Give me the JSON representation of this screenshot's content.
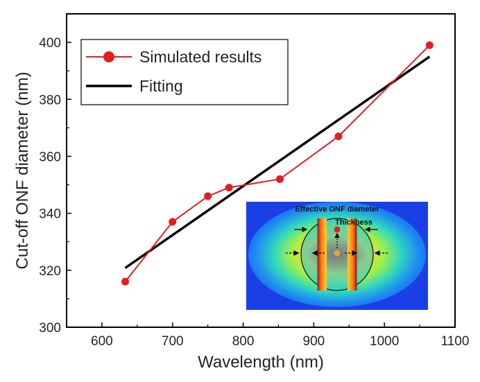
{
  "chart_data": {
    "type": "line",
    "title": "",
    "xlabel": "Wavelength (nm)",
    "ylabel": "Cut-off ONF diameter (nm)",
    "xlim": [
      550,
      1100
    ],
    "ylim": [
      300,
      410
    ],
    "xticks": [
      600,
      700,
      800,
      900,
      1000,
      1100
    ],
    "yticks": [
      300,
      320,
      340,
      360,
      380,
      400
    ],
    "grid": false,
    "legend_position": "top-left",
    "series": [
      {
        "name": "Simulated results",
        "style": "line-with-markers",
        "color": "#e41e1e",
        "x": [
          633,
          700,
          750,
          780,
          852,
          935,
          1064
        ],
        "y": [
          316,
          337,
          346,
          349,
          352,
          367,
          399
        ]
      },
      {
        "name": "Fitting",
        "style": "line",
        "color": "#000000",
        "x": [
          633,
          1064
        ],
        "y": [
          320.8,
          395
        ]
      }
    ],
    "inset": {
      "label_diameter": "Effective ONF diameter",
      "label_thickness": "Thickness"
    }
  }
}
